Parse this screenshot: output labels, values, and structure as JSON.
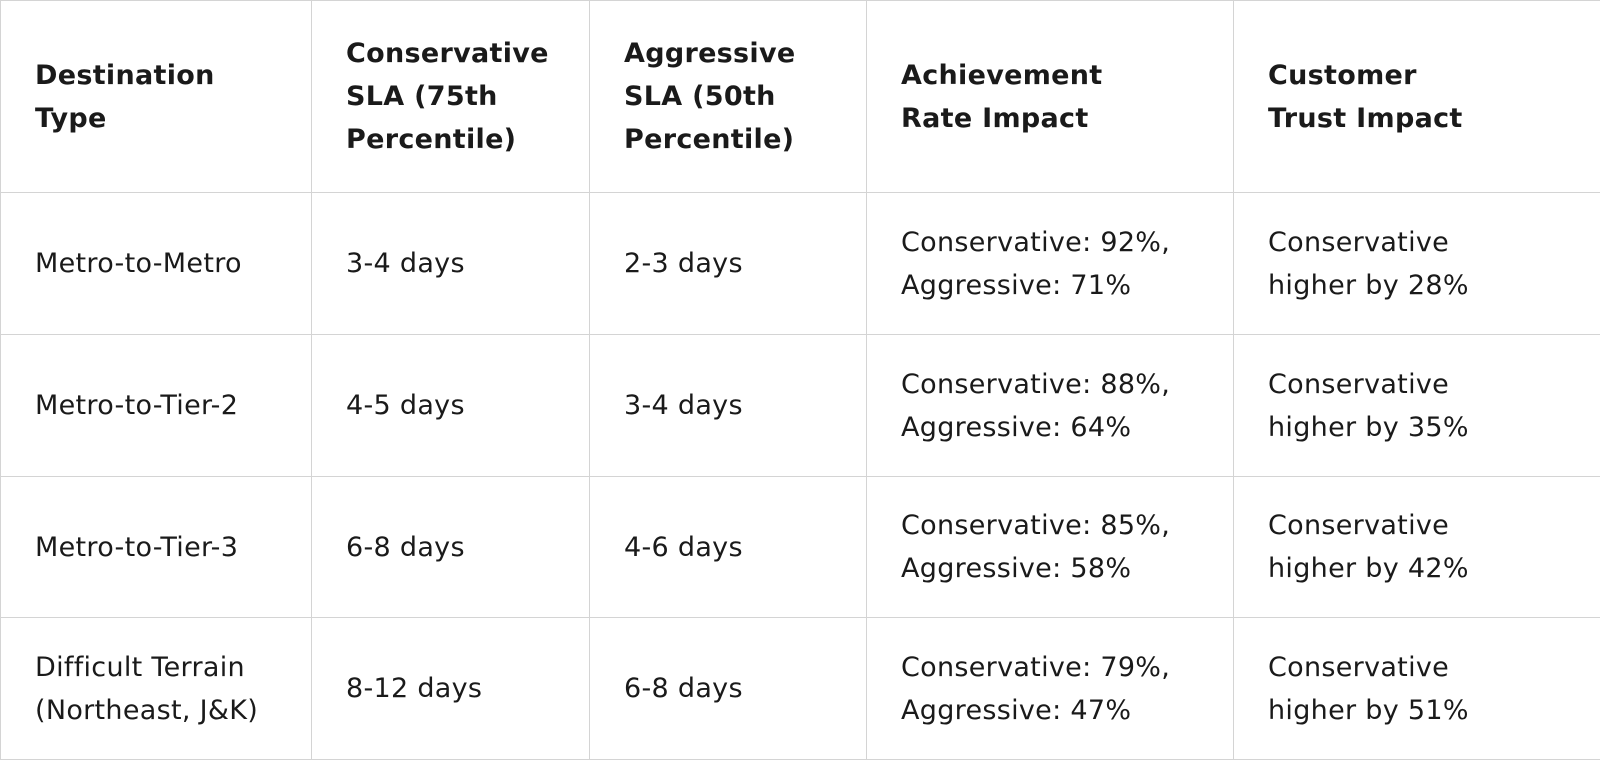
{
  "table": {
    "header": [
      [
        "Destination",
        "Type"
      ],
      [
        "Conservative",
        "SLA (75th",
        "Percentile)"
      ],
      [
        "Aggressive",
        "SLA (50th",
        "Percentile)"
      ],
      [
        "Achievement",
        "Rate Impact"
      ],
      [
        "Customer",
        "Trust Impact"
      ]
    ],
    "rows": [
      [
        [
          "Metro-to-Metro"
        ],
        [
          "3-4 days"
        ],
        [
          "2-3 days"
        ],
        [
          "Conservative: 92%,",
          "Aggressive: 71%"
        ],
        [
          "Conservative",
          "higher by 28%"
        ]
      ],
      [
        [
          "Metro-to-Tier-2"
        ],
        [
          "4-5 days"
        ],
        [
          "3-4 days"
        ],
        [
          "Conservative: 88%,",
          "Aggressive: 64%"
        ],
        [
          "Conservative",
          "higher by 35%"
        ]
      ],
      [
        [
          "Metro-to-Tier-3"
        ],
        [
          "6-8 days"
        ],
        [
          "4-6 days"
        ],
        [
          "Conservative: 85%,",
          "Aggressive: 58%"
        ],
        [
          "Conservative",
          "higher by 42%"
        ]
      ],
      [
        [
          "Difficult Terrain",
          "(Northeast, J&K)"
        ],
        [
          "8-12 days"
        ],
        [
          "6-8 days"
        ],
        [
          "Conservative: 79%,",
          "Aggressive: 47%"
        ],
        [
          "Conservative",
          "higher by 51%"
        ]
      ]
    ]
  }
}
